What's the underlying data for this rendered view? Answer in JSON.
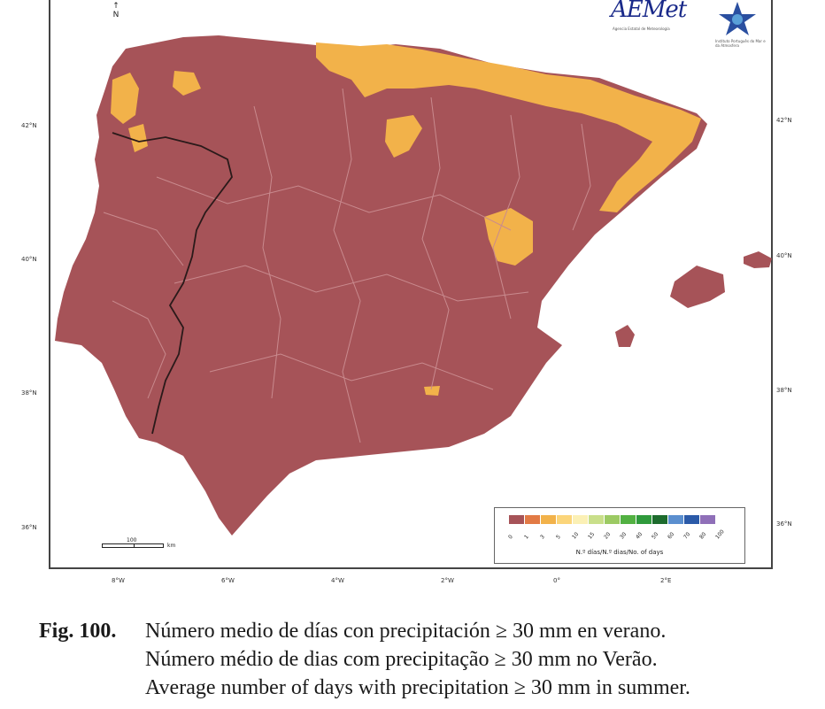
{
  "map": {
    "north_label": "N",
    "latitude_labels": [
      "42°N",
      "40°N",
      "38°N",
      "36°N"
    ],
    "longitude_labels": [
      "8°W",
      "6°W",
      "4°W",
      "2°W",
      "0°",
      "2°E"
    ],
    "scale": {
      "value": "100",
      "unit": "km"
    },
    "colors": {
      "base": "#a65358",
      "highlight": "#f2b24a",
      "border": "#2a1a1a",
      "provinces": "#c98a8e",
      "sea": "#ffffff"
    }
  },
  "logos": {
    "aemet": {
      "text": "AEMet",
      "sub": "Agencia Estatal de Meteorología"
    },
    "ipma": {
      "sub": "Instituto Português do Mar e da Atmosfera"
    }
  },
  "legend": {
    "title": "N.º días/N.º dias/No. of days",
    "ticks": [
      "0",
      "1",
      "3",
      "5",
      "10",
      "15",
      "20",
      "30",
      "40",
      "50",
      "60",
      "70",
      "80",
      "100"
    ],
    "colors": [
      "#a65358",
      "#e27a45",
      "#f2b24a",
      "#fbd57a",
      "#fbf0b5",
      "#c9df8a",
      "#9cca63",
      "#52b142",
      "#2f9a3c",
      "#1d6b2d",
      "#5b8fcf",
      "#2b5aa8",
      "#8f6fb8"
    ]
  },
  "caption": {
    "label": "Fig. 100",
    "lines": [
      "Número medio de días con precipitación ≥ 30 mm en verano.",
      "Número médio de dias com precipitação ≥ 30 mm no Verão.",
      "Average number of days with precipitation ≥ 30 mm in summer."
    ]
  }
}
